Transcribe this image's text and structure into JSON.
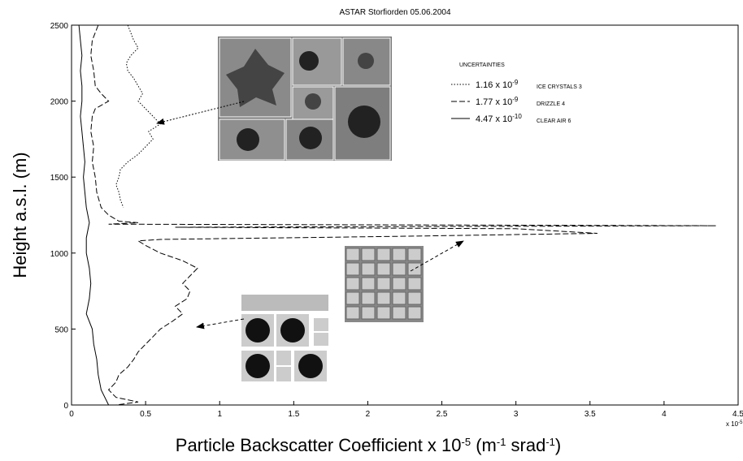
{
  "chart_data": {
    "type": "profile",
    "title": "ASTAR Storfiorden 05.06.2004",
    "xlabel_parts": [
      "Particle Backscatter Coefficient x 10",
      "-5",
      " (m",
      "-1",
      " srad",
      "-1",
      ")"
    ],
    "ylabel": "Height a.s.l. (m)",
    "x_multiplier_parts": [
      "x 10",
      "-5"
    ],
    "xlim": [
      0,
      4.5
    ],
    "xticks": [
      0,
      0.5,
      1,
      1.5,
      2,
      2.5,
      3,
      3.5,
      4,
      4.5
    ],
    "ylim": [
      0,
      2500
    ],
    "yticks": [
      0,
      500,
      1000,
      1500,
      2000,
      2500
    ],
    "legend_title": "UNCERTAINTIES",
    "series": [
      {
        "name": "ICE CRYSTALS 3",
        "uncertainty_parts": [
          "1.16 x 10",
          "-9"
        ],
        "style": "dotted",
        "color": "#000000",
        "x": [
          0.38,
          0.4,
          0.42,
          0.45,
          0.4,
          0.37,
          0.38,
          0.42,
          0.45,
          0.48,
          0.45,
          0.5,
          0.55,
          0.6,
          0.52,
          0.55,
          0.5,
          0.45,
          0.38,
          0.33,
          0.32,
          0.3,
          0.32,
          0.33,
          0.35
        ],
        "y": [
          2500,
          2450,
          2400,
          2350,
          2300,
          2250,
          2200,
          2150,
          2100,
          2050,
          2000,
          1950,
          1900,
          1850,
          1800,
          1750,
          1700,
          1650,
          1600,
          1550,
          1500,
          1450,
          1400,
          1350,
          1300
        ]
      },
      {
        "name": "DRIZZLE 4",
        "uncertainty_parts": [
          "1.77 x 10",
          "-9"
        ],
        "style": "dashed",
        "color": "#000000",
        "x": [
          0.18,
          0.14,
          0.13,
          0.15,
          0.16,
          0.2,
          0.25,
          0.16,
          0.14,
          0.13,
          0.15,
          0.14,
          0.16,
          0.17,
          0.2,
          0.25,
          0.32,
          0.45,
          0.25,
          4.35,
          0.7,
          3.0,
          3.55,
          2.2,
          0.6,
          0.45,
          0.5,
          0.6,
          0.75,
          0.85,
          0.8,
          0.75,
          0.8,
          0.78,
          0.7,
          0.75,
          0.68,
          0.6,
          0.55,
          0.5,
          0.45,
          0.42,
          0.38,
          0.32,
          0.3,
          0.25,
          0.3,
          0.45,
          0.3
        ],
        "y": [
          2500,
          2400,
          2300,
          2200,
          2100,
          2050,
          2000,
          1950,
          1900,
          1800,
          1700,
          1600,
          1500,
          1400,
          1300,
          1250,
          1210,
          1200,
          1190,
          1180,
          1170,
          1160,
          1130,
          1110,
          1090,
          1080,
          1050,
          1000,
          950,
          900,
          850,
          800,
          750,
          700,
          650,
          600,
          550,
          500,
          450,
          400,
          350,
          300,
          250,
          200,
          150,
          100,
          50,
          20,
          0
        ]
      },
      {
        "name": "CLEAR AIR 6",
        "uncertainty_parts": [
          "4.47 x 10",
          "-10"
        ],
        "style": "solid",
        "color": "#000000",
        "x": [
          0.25,
          0.2,
          0.18,
          0.17,
          0.15,
          0.14,
          0.1,
          0.12,
          0.13,
          0.12,
          0.1,
          0.1,
          0.12,
          0.1,
          0.09,
          0.08,
          0.09,
          0.08,
          0.07,
          0.06,
          0.07,
          0.07,
          0.06,
          0.07,
          0.06,
          0.05
        ],
        "y": [
          0,
          100,
          200,
          300,
          400,
          500,
          600,
          700,
          800,
          900,
          1000,
          1100,
          1200,
          1300,
          1400,
          1500,
          1600,
          1700,
          1800,
          1900,
          2000,
          2100,
          2200,
          2300,
          2400,
          2500
        ]
      }
    ]
  }
}
